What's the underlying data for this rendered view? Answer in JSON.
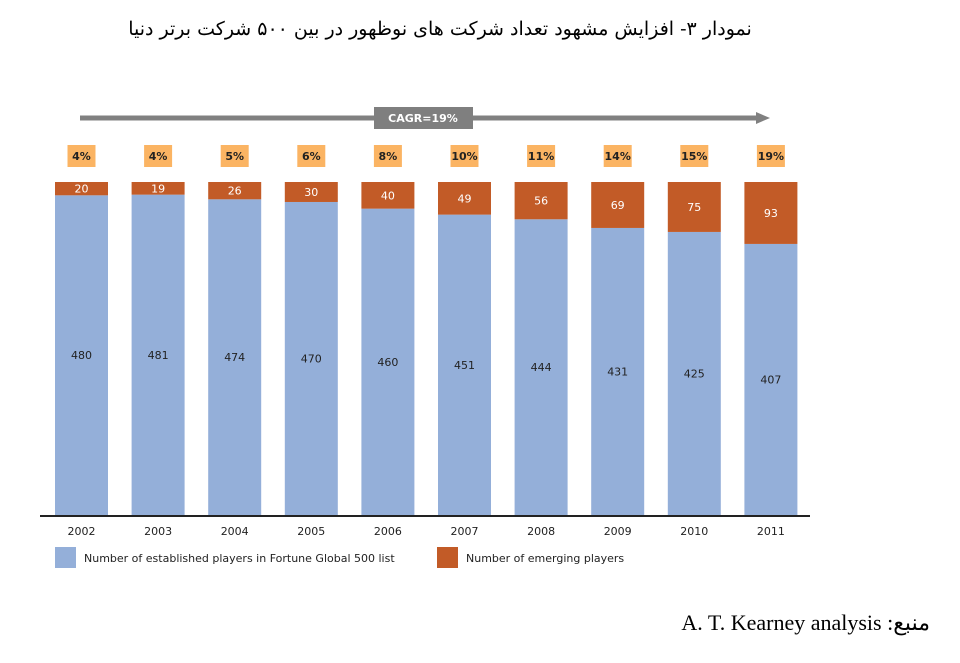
{
  "title": "نمودار ۳- افزایش مشهود تعداد شرکت های نوظهور در بین ۵۰۰ شرکت برتر دنیا",
  "source": "منبع: A. T. Kearney analysis",
  "chart_data": {
    "type": "bar",
    "stacked": true,
    "categories": [
      "2002",
      "2003",
      "2004",
      "2005",
      "2006",
      "2007",
      "2008",
      "2009",
      "2010",
      "2011"
    ],
    "series": [
      {
        "name": "Number of established players in Fortune Global 500 list",
        "color": "#94AFD9",
        "values": [
          480,
          481,
          474,
          470,
          460,
          451,
          444,
          431,
          425,
          407
        ]
      },
      {
        "name": "Number of emerging players",
        "color": "#C25B27",
        "values": [
          20,
          19,
          26,
          30,
          40,
          49,
          56,
          69,
          75,
          93
        ]
      }
    ],
    "percent_labels": [
      "4%",
      "4%",
      "5%",
      "6%",
      "8%",
      "10%",
      "11%",
      "14%",
      "15%",
      "19%"
    ],
    "percent_color": "#FBB463",
    "annotation": "CAGR=19%",
    "ylim": [
      0,
      500
    ],
    "grid": false,
    "legend": "bottom-left"
  }
}
